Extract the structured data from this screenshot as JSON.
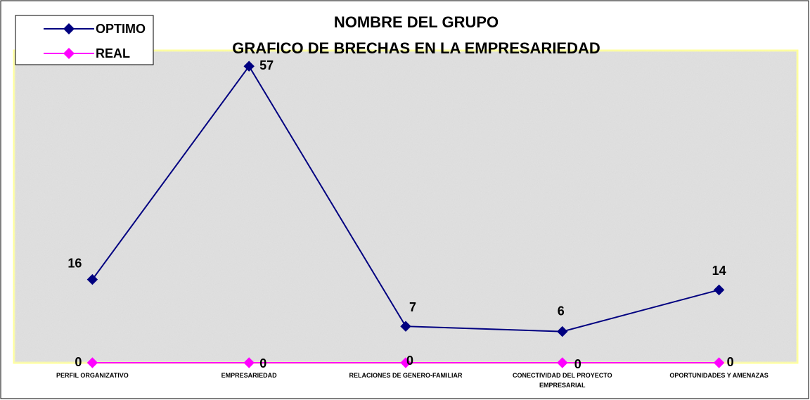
{
  "chart_data": {
    "type": "line",
    "title": "NOMBRE DEL GRUPO",
    "subtitle": "GRAFICO DE BRECHAS EN LA EMPRESARIEDAD",
    "categories": [
      "PERFIL  ORGANIZATIVO",
      "EMPRESARIEDAD",
      "RELACIONES DE GENERO-FAMILIAR",
      "CONECTIVIDAD DEL PROYECTO EMPRESARIAL",
      "OPORTUNIDADES Y AMENAZAS"
    ],
    "series": [
      {
        "name": "OPTIMO",
        "color": "#000080",
        "values": [
          16,
          57,
          7,
          6,
          14
        ]
      },
      {
        "name": "REAL",
        "color": "#ff00ff",
        "values": [
          0,
          0,
          0,
          0,
          0
        ]
      }
    ],
    "ylim": [
      0,
      60
    ],
    "legend": "top-left"
  }
}
